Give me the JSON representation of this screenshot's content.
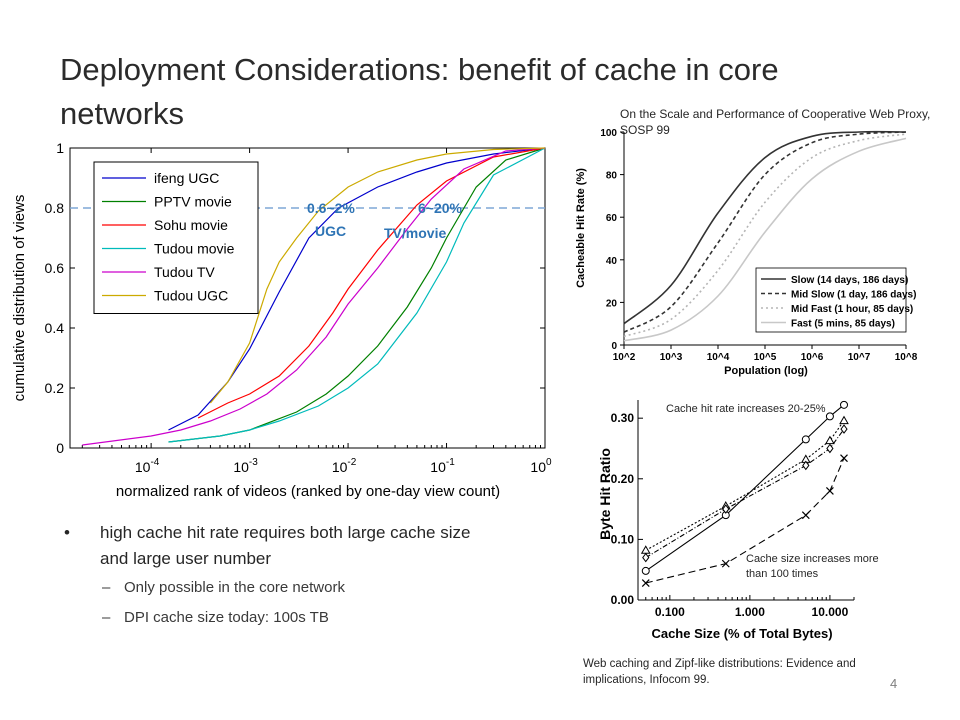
{
  "slide": {
    "title": "Deployment Considerations: benefit of cache in core networks",
    "page_number": "4",
    "citation_top": "On the Scale and Performance of Cooperative Web Proxy, SOSP 99",
    "citation_bottom": "Web caching and Zipf-like distributions: Evidence and implications, Infocom 99.",
    "bullet": "high cache hit rate requires both large cache size and large user number",
    "sub_bullets": [
      "Only possible in the core network",
      "DPI cache size today: 100s TB"
    ]
  },
  "chart_data": [
    {
      "type": "line",
      "xlabel": "normalized rank of videos (ranked by one-day view count)",
      "ylabel": "cumulative distribution of views",
      "x_scale": "log",
      "xlim": [
        1.5e-05,
        1
      ],
      "ylim": [
        0,
        1
      ],
      "yticks": [
        "0",
        "0.2",
        "0.4",
        "0.6",
        "0.8",
        "1"
      ],
      "xticks": [
        {
          "base": "10",
          "exp": "-4"
        },
        {
          "base": "10",
          "exp": "-3"
        },
        {
          "base": "10",
          "exp": "-2"
        },
        {
          "base": "10",
          "exp": "-1"
        },
        {
          "base": "10",
          "exp": "0"
        }
      ],
      "legend_position": "top-left",
      "reference_line_y": 0.8,
      "annotations": [
        {
          "label": "0.6~2%",
          "color": "#2e74b5"
        },
        {
          "label": "UGC",
          "color": "#2e74b5"
        },
        {
          "label": "6~20%",
          "color": "#2e74b5"
        },
        {
          "label": "TV/movie",
          "color": "#2e74b5"
        }
      ],
      "series": [
        {
          "name": "ifeng UGC",
          "color": "#0000cc",
          "points": [
            [
              0.00015,
              0.06
            ],
            [
              0.0003,
              0.11
            ],
            [
              0.0006,
              0.22
            ],
            [
              0.001,
              0.33
            ],
            [
              0.002,
              0.52
            ],
            [
              0.004,
              0.7
            ],
            [
              0.008,
              0.8
            ],
            [
              0.02,
              0.87
            ],
            [
              0.05,
              0.92
            ],
            [
              0.1,
              0.95
            ],
            [
              0.3,
              0.98
            ],
            [
              1,
              1.0
            ]
          ]
        },
        {
          "name": "PPTV movie",
          "color": "#008000",
          "points": [
            [
              0.00015,
              0.02
            ],
            [
              0.0005,
              0.04
            ],
            [
              0.001,
              0.06
            ],
            [
              0.003,
              0.12
            ],
            [
              0.006,
              0.18
            ],
            [
              0.01,
              0.24
            ],
            [
              0.02,
              0.34
            ],
            [
              0.04,
              0.47
            ],
            [
              0.07,
              0.6
            ],
            [
              0.1,
              0.7
            ],
            [
              0.2,
              0.87
            ],
            [
              0.4,
              0.96
            ],
            [
              1,
              1.0
            ]
          ]
        },
        {
          "name": "Sohu movie",
          "color": "#ff0000",
          "points": [
            [
              0.0003,
              0.1
            ],
            [
              0.0006,
              0.15
            ],
            [
              0.001,
              0.18
            ],
            [
              0.002,
              0.24
            ],
            [
              0.004,
              0.34
            ],
            [
              0.007,
              0.45
            ],
            [
              0.01,
              0.53
            ],
            [
              0.02,
              0.66
            ],
            [
              0.05,
              0.81
            ],
            [
              0.1,
              0.89
            ],
            [
              0.3,
              0.97
            ],
            [
              1,
              1.0
            ]
          ]
        },
        {
          "name": "Tudou movie",
          "color": "#00bbbb",
          "points": [
            [
              0.00015,
              0.02
            ],
            [
              0.0005,
              0.04
            ],
            [
              0.001,
              0.06
            ],
            [
              0.002,
              0.09
            ],
            [
              0.005,
              0.14
            ],
            [
              0.01,
              0.2
            ],
            [
              0.02,
              0.28
            ],
            [
              0.05,
              0.45
            ],
            [
              0.1,
              0.62
            ],
            [
              0.15,
              0.75
            ],
            [
              0.3,
              0.91
            ],
            [
              1,
              1.0
            ]
          ]
        },
        {
          "name": "Tudou TV",
          "color": "#cc00cc",
          "points": [
            [
              2e-05,
              0.01
            ],
            [
              0.0001,
              0.04
            ],
            [
              0.0002,
              0.06
            ],
            [
              0.0004,
              0.09
            ],
            [
              0.0008,
              0.13
            ],
            [
              0.0015,
              0.18
            ],
            [
              0.003,
              0.26
            ],
            [
              0.006,
              0.37
            ],
            [
              0.01,
              0.48
            ],
            [
              0.02,
              0.6
            ],
            [
              0.04,
              0.73
            ],
            [
              0.07,
              0.83
            ],
            [
              0.15,
              0.93
            ],
            [
              0.4,
              0.99
            ],
            [
              1,
              1.0
            ]
          ]
        },
        {
          "name": "Tudou UGC",
          "color": "#ccaa00",
          "points": [
            [
              0.0004,
              0.15
            ],
            [
              0.0006,
              0.22
            ],
            [
              0.001,
              0.35
            ],
            [
              0.0015,
              0.53
            ],
            [
              0.002,
              0.62
            ],
            [
              0.003,
              0.7
            ],
            [
              0.005,
              0.79
            ],
            [
              0.01,
              0.87
            ],
            [
              0.02,
              0.92
            ],
            [
              0.05,
              0.96
            ],
            [
              0.1,
              0.98
            ],
            [
              0.3,
              0.995
            ],
            [
              1,
              1.0
            ]
          ]
        }
      ]
    },
    {
      "type": "line",
      "xlabel": "Population (log)",
      "ylabel": "Cacheable Hit Rate (%)",
      "x_scale": "log",
      "xlim": [
        100,
        100000000
      ],
      "ylim": [
        0,
        100
      ],
      "yticks": [
        "0",
        "20",
        "40",
        "60",
        "80",
        "100"
      ],
      "xticks": [
        "10^2",
        "10^3",
        "10^4",
        "10^5",
        "10^6",
        "10^7",
        "10^8"
      ],
      "legend_position": "bottom-right",
      "series": [
        {
          "name": "Slow (14 days, 186 days)",
          "color": "#333333",
          "dash": "solid",
          "points": [
            [
              100,
              10
            ],
            [
              1000,
              28
            ],
            [
              10000,
              62
            ],
            [
              100000,
              88
            ],
            [
              1000000,
              98
            ],
            [
              10000000,
              100
            ],
            [
              100000000,
              100
            ]
          ]
        },
        {
          "name": "Mid Slow (1 day, 186 days)",
          "color": "#333333",
          "dash": "dash",
          "points": [
            [
              100,
              6
            ],
            [
              1000,
              18
            ],
            [
              10000,
              48
            ],
            [
              100000,
              80
            ],
            [
              1000000,
              95
            ],
            [
              10000000,
              99
            ],
            [
              100000000,
              100
            ]
          ]
        },
        {
          "name": "Mid Fast (1 hour, 85 days)",
          "color": "#b5b5b5",
          "dash": "dot",
          "points": [
            [
              100,
              4
            ],
            [
              1000,
              12
            ],
            [
              10000,
              35
            ],
            [
              100000,
              67
            ],
            [
              1000000,
              88
            ],
            [
              10000000,
              96
            ],
            [
              100000000,
              99
            ]
          ]
        },
        {
          "name": "Fast (5 mins, 85 days)",
          "color": "#c8c8c8",
          "dash": "solid",
          "points": [
            [
              100,
              2
            ],
            [
              1000,
              7
            ],
            [
              10000,
              23
            ],
            [
              100000,
              53
            ],
            [
              1000000,
              78
            ],
            [
              10000000,
              91
            ],
            [
              100000000,
              97
            ]
          ]
        }
      ]
    },
    {
      "type": "line",
      "xlabel": "Cache Size (% of Total Bytes)",
      "ylabel": "Byte Hit Ratio",
      "x_scale": "log",
      "xlim": [
        0.04,
        20
      ],
      "ylim": [
        0,
        0.33
      ],
      "yticks": [
        "0.00",
        "0.10",
        "0.20",
        "0.30"
      ],
      "xticks": [
        "0.100",
        "1.000",
        "10.000"
      ],
      "annotations": [
        {
          "label": "Cache hit rate increases 20-25%"
        },
        {
          "label": "Cache size increases more than 100 times"
        }
      ],
      "series": [
        {
          "marker": "circle",
          "dash": "solid",
          "points": [
            [
              0.05,
              0.048
            ],
            [
              0.5,
              0.14
            ],
            [
              5,
              0.265
            ],
            [
              10,
              0.303
            ],
            [
              15,
              0.322
            ]
          ]
        },
        {
          "marker": "triangle",
          "dash": "dot",
          "points": [
            [
              0.05,
              0.082
            ],
            [
              0.5,
              0.155
            ],
            [
              5,
              0.232
            ],
            [
              10,
              0.263
            ],
            [
              15,
              0.296
            ]
          ]
        },
        {
          "marker": "diamond",
          "dash": "dashdot",
          "points": [
            [
              0.05,
              0.07
            ],
            [
              0.5,
              0.15
            ],
            [
              5,
              0.222
            ],
            [
              10,
              0.25
            ],
            [
              15,
              0.282
            ]
          ]
        },
        {
          "marker": "x",
          "dash": "dash",
          "points": [
            [
              0.05,
              0.028
            ],
            [
              0.5,
              0.06
            ],
            [
              5,
              0.14
            ],
            [
              10,
              0.18
            ],
            [
              15,
              0.234
            ]
          ]
        }
      ]
    }
  ]
}
